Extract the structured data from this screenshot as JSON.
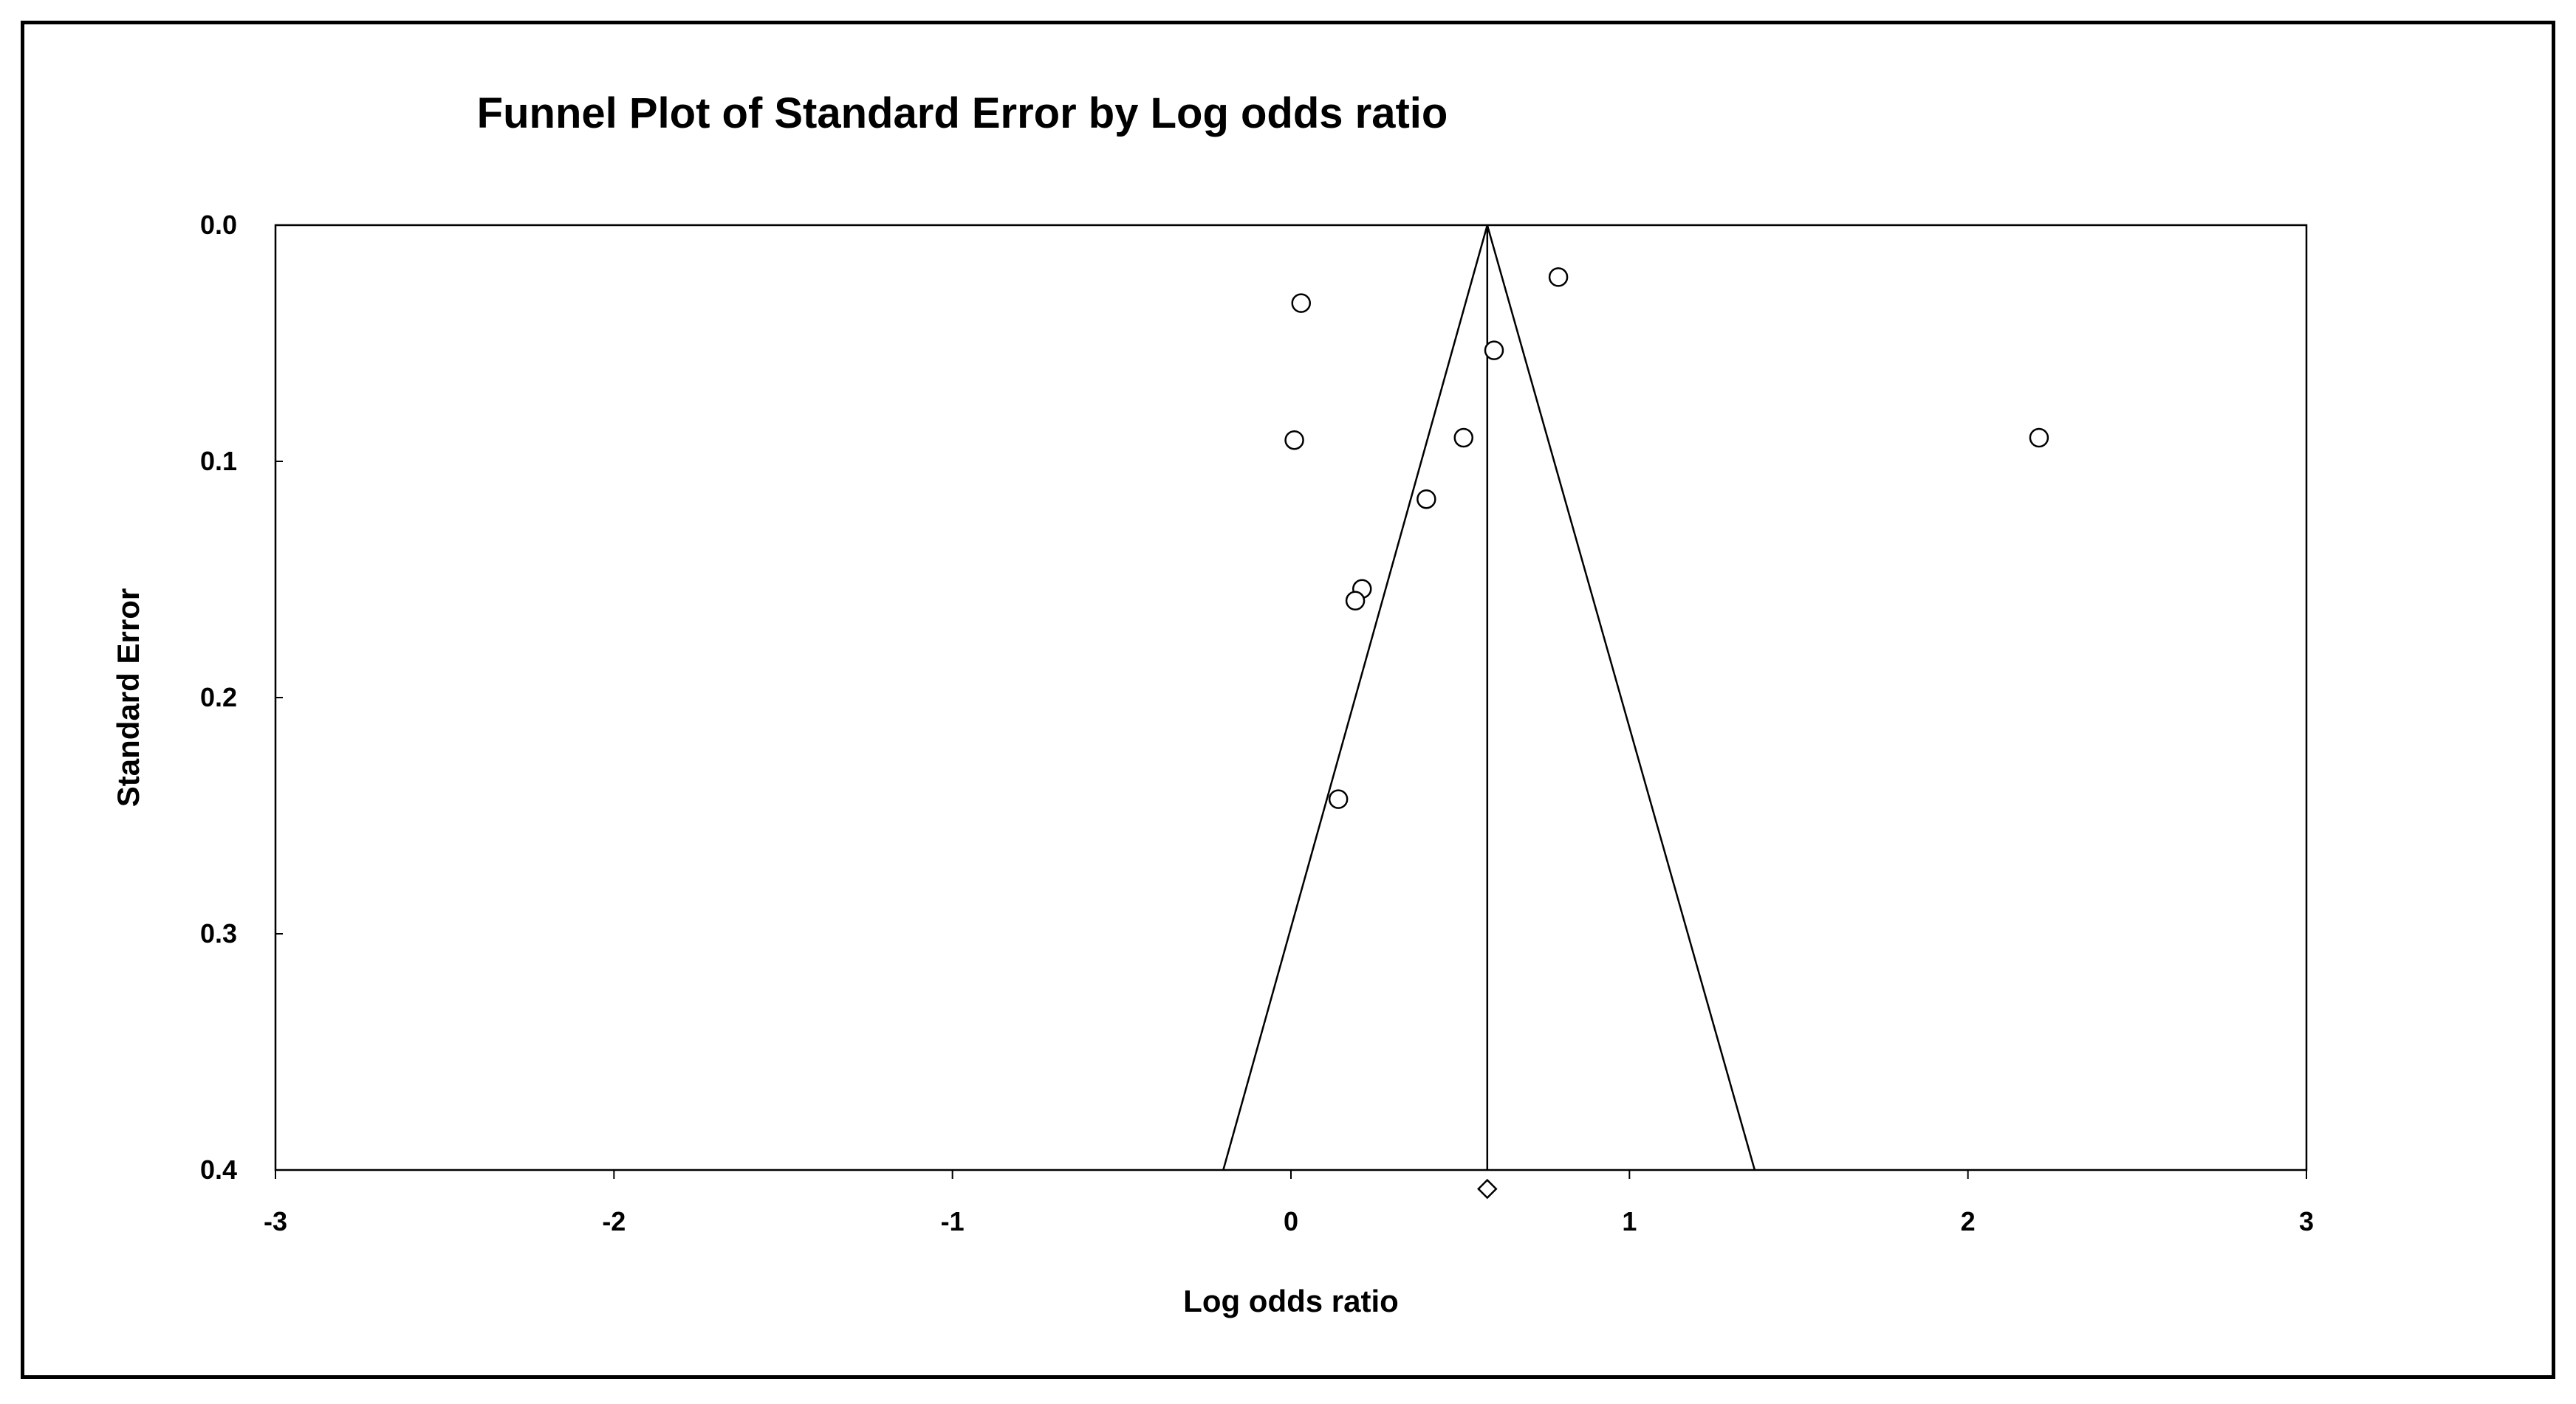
{
  "chart_data": {
    "type": "scatter",
    "title": "Funnel Plot of Standard Error by Log odds ratio",
    "xlabel": "Log odds ratio",
    "ylabel": "Standard Error",
    "xlim": [
      -3,
      3
    ],
    "ylim": [
      0.0,
      0.4
    ],
    "y_inverted": true,
    "x_ticks": [
      "-3",
      "-2",
      "-1",
      "0",
      "1",
      "2",
      "3"
    ],
    "y_ticks": [
      "0.0",
      "0.1",
      "0.2",
      "0.3",
      "0.4"
    ],
    "grid": false,
    "legend": "none",
    "points": [
      {
        "x": 0.03,
        "y": 0.033
      },
      {
        "x": 0.79,
        "y": 0.022
      },
      {
        "x": 0.6,
        "y": 0.053
      },
      {
        "x": 0.01,
        "y": 0.091
      },
      {
        "x": 0.51,
        "y": 0.09
      },
      {
        "x": 2.21,
        "y": 0.09
      },
      {
        "x": 0.4,
        "y": 0.116
      },
      {
        "x": 0.21,
        "y": 0.154
      },
      {
        "x": 0.19,
        "y": 0.159
      },
      {
        "x": 0.14,
        "y": 0.243
      }
    ],
    "summary_estimate": {
      "x": 0.58,
      "y": 0.408,
      "marker": "diamond"
    },
    "funnel": {
      "apex_x": 0.58,
      "apex_y": 0.0,
      "base_y": 0.4,
      "base_left_x": -0.2,
      "base_right_x": 1.37
    },
    "colors": {
      "line": "#000000",
      "marker_fill": "#ffffff",
      "marker_stroke": "#000000"
    }
  }
}
